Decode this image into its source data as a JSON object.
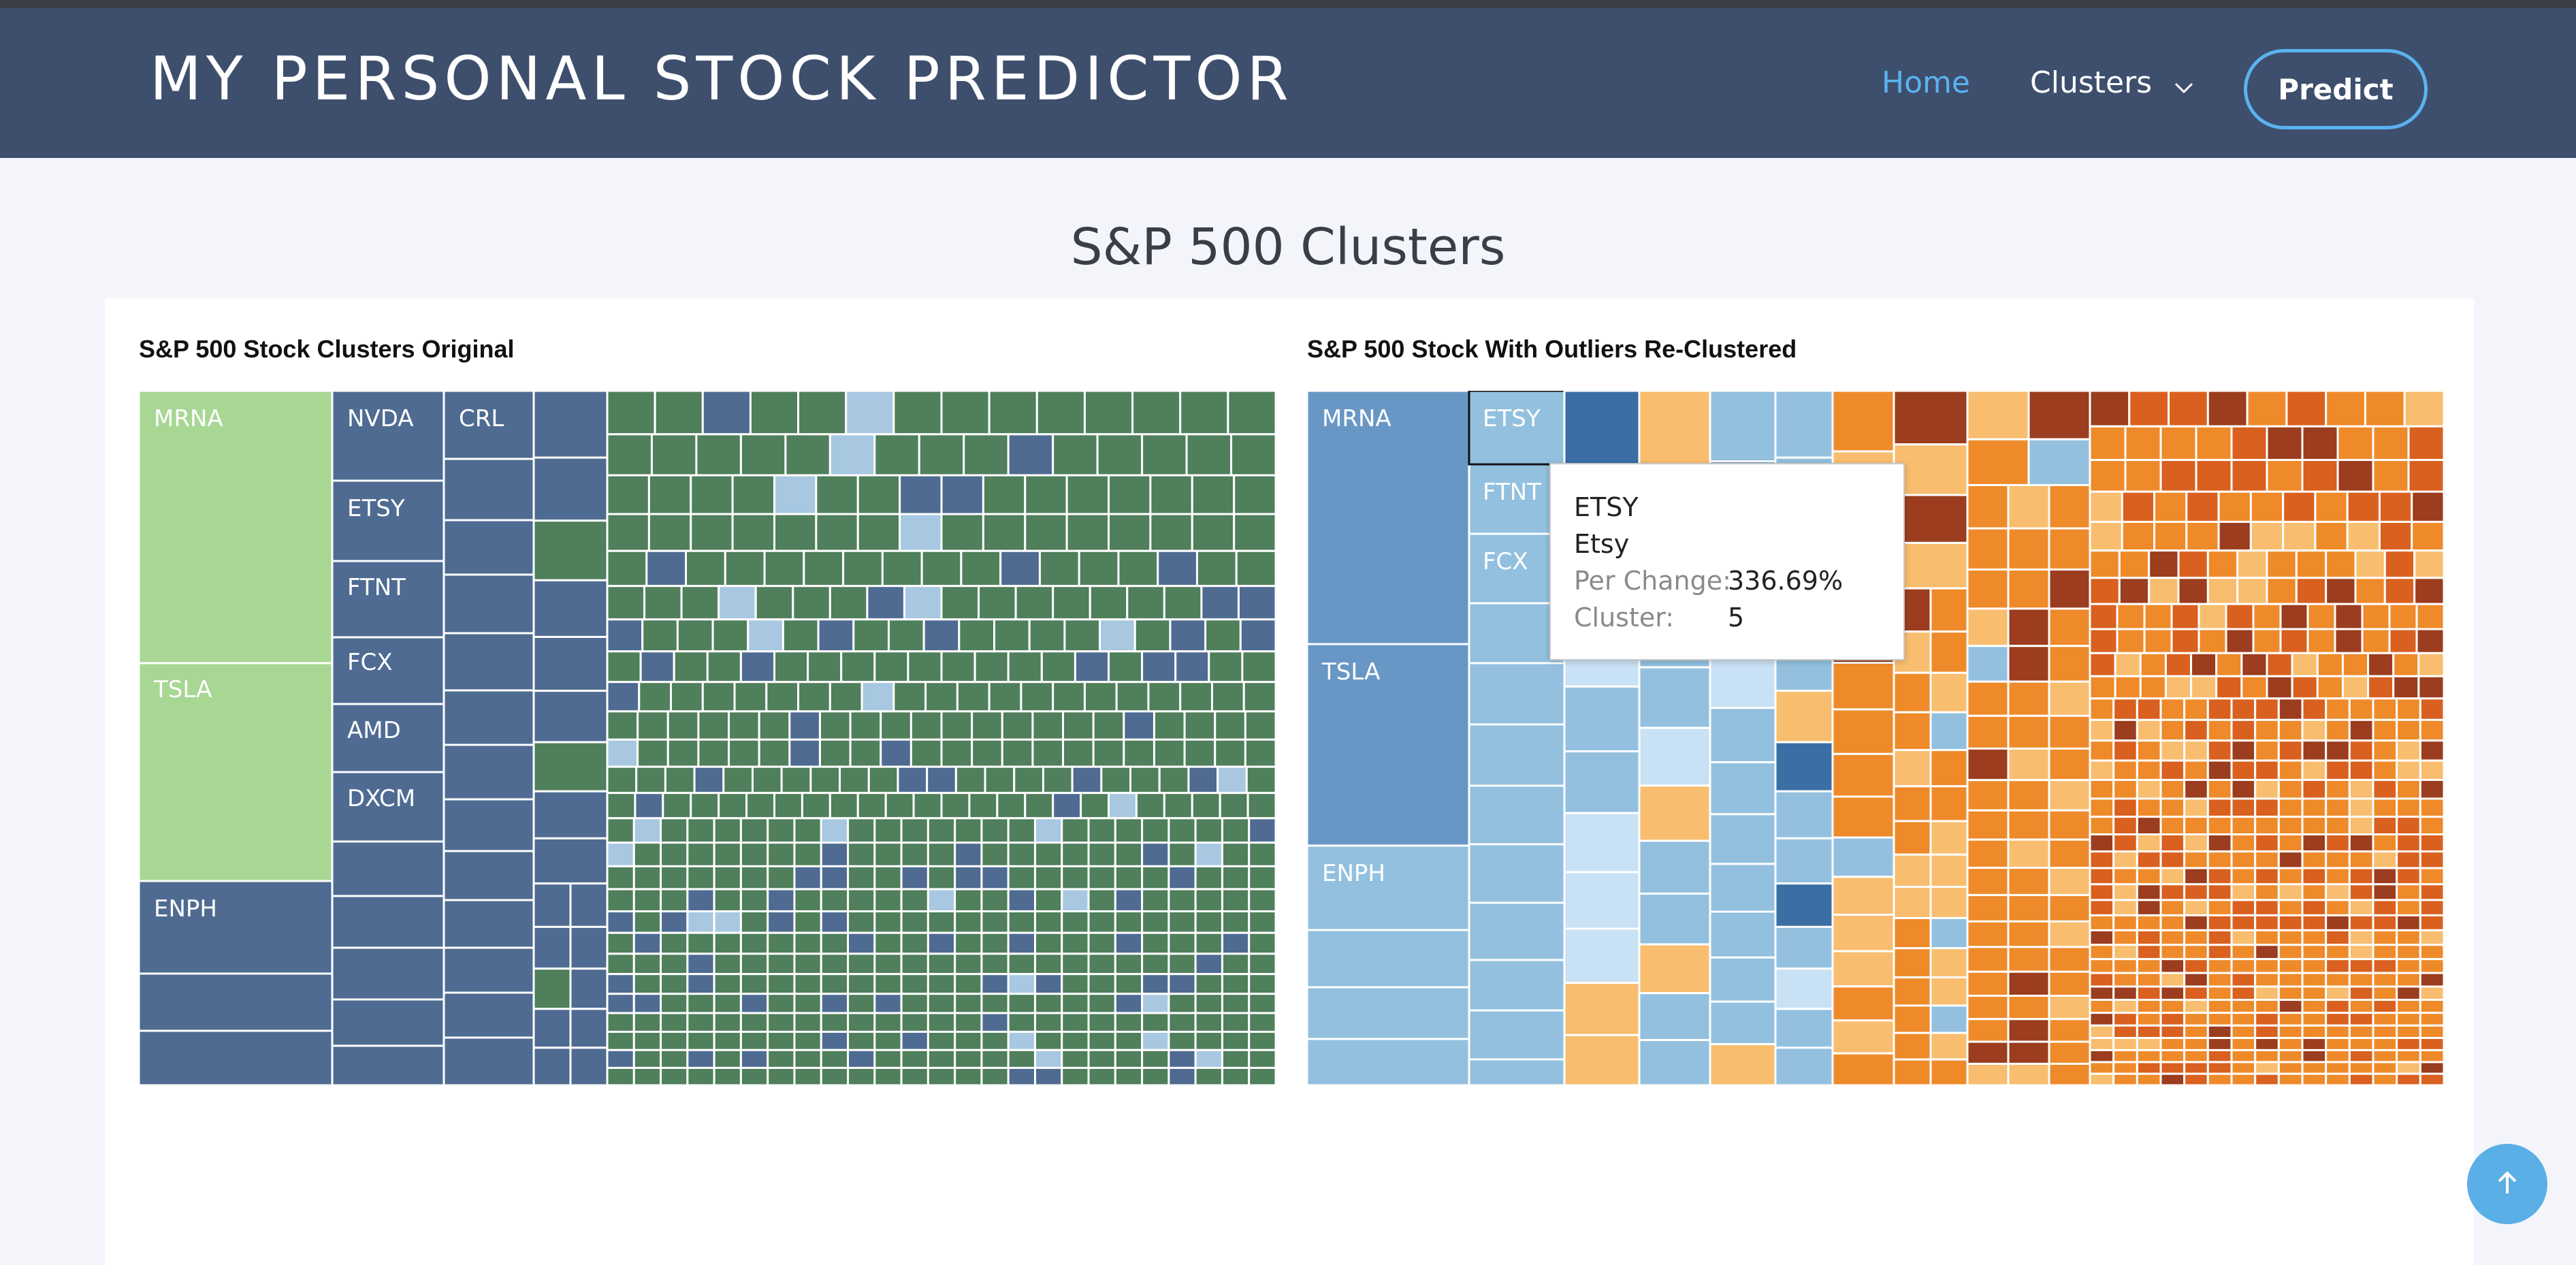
{
  "nav": {
    "brand": "MY PERSONAL STOCK PREDICTOR",
    "home": "Home",
    "clusters": "Clusters",
    "predict": "Predict"
  },
  "page_title": "S&P 500 Clusters",
  "left_viz": {
    "title": "S&P 500 Stock Clusters Original",
    "labels": [
      "MRNA",
      "TSLA",
      "ENPH",
      "NVDA",
      "ETSY",
      "FTNT",
      "FCX",
      "AMD",
      "DXCM",
      "CRL"
    ]
  },
  "right_viz": {
    "title": "S&P 500 Stock With Outliers Re-Clustered",
    "labels": [
      "MRNA",
      "TSLA",
      "ENPH",
      "ETSY",
      "FTNT",
      "FCX"
    ]
  },
  "tooltip": {
    "ticker": "ETSY",
    "name": "Etsy",
    "per_change_label": "Per Change:",
    "per_change_value": "336.69%",
    "cluster_label": "Cluster:",
    "cluster_value": "5"
  },
  "colors": {
    "header_bg": "#3e4f6d",
    "nav_active": "#5ab3f0",
    "light_green": "#a8d794",
    "dark_green": "#4f7f5b",
    "slate_blue": "#4f6b92",
    "pale_blue": "#a8c8e2",
    "mid_blue": "#6897c5",
    "sky_blue": "#93c0df",
    "light_orange": "#f8bd6e",
    "orange": "#ee8a2a",
    "dark_orange": "#d9601f",
    "brown": "#9b3d1e"
  },
  "icons": {
    "dropdown": "chevron-down-icon",
    "scroll_top": "arrow-up-icon"
  }
}
